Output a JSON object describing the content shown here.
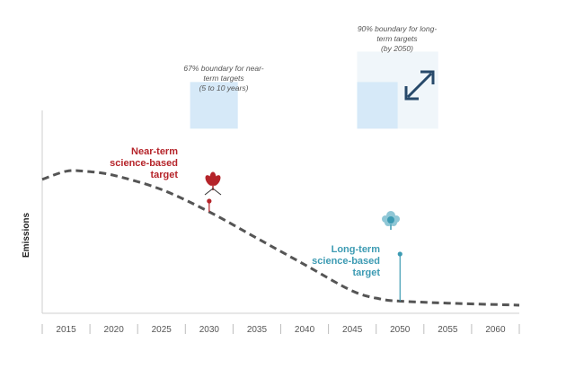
{
  "chart_data": {
    "type": "line",
    "title": "",
    "xlabel": "",
    "ylabel": "Emissions",
    "x_ticks": [
      "2015",
      "2020",
      "2025",
      "2030",
      "2035",
      "2040",
      "2045",
      "2050",
      "2055",
      "2060"
    ],
    "xlim": [
      2012.5,
      2062.5
    ],
    "ylim": [
      0,
      100
    ],
    "grid": false,
    "series": [
      {
        "style": "dashed",
        "color": "#555555",
        "x": [
          2012.5,
          2015,
          2017,
          2020,
          2025,
          2030,
          2035,
          2040,
          2045,
          2048,
          2050,
          2055,
          2062.5
        ],
        "y": [
          66,
          70,
          70,
          68,
          61,
          50,
          37,
          24,
          11,
          7,
          6,
          5,
          4
        ]
      }
    ],
    "annotations": {
      "near_term_box": {
        "lines": [
          "67% boundary for near-",
          "term targets",
          "(5 to 10 years)"
        ],
        "x_range": [
          2028,
          2033
        ],
        "y_range": [
          91,
          114
        ],
        "color": "#d6e9f8"
      },
      "long_term_box": {
        "lines": [
          "90% boundary for long-",
          "term targets",
          "(by 2050)"
        ],
        "x_range": [
          2045.5,
          2054
        ],
        "y_range": [
          91,
          129
        ],
        "color": "#d6e9f8",
        "bg_color": "#f0f6fa"
      },
      "near_term_target": {
        "lines": [
          "Near-term",
          "science-based",
          "target"
        ],
        "x": 2030,
        "y": 50,
        "color": "#b5242a",
        "icon": "sprout-icon"
      },
      "long_term_target": {
        "lines": [
          "Long-term",
          "science-based",
          "target"
        ],
        "x": 2050,
        "y": 6,
        "color": "#3d9bb3",
        "icon": "tree-icon"
      }
    }
  }
}
